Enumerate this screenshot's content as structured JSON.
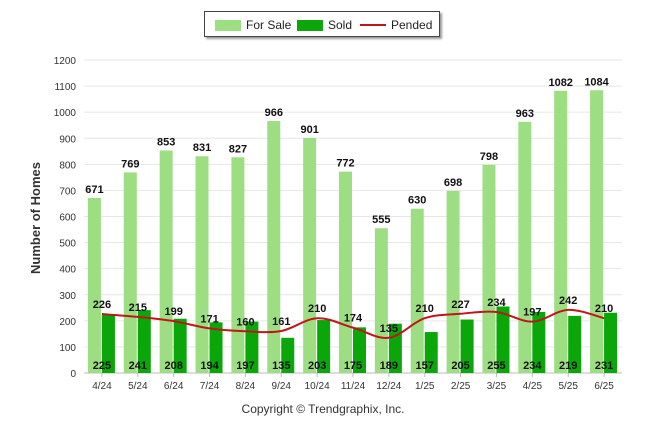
{
  "chart_data": {
    "type": "bar",
    "categories": [
      "4/24",
      "5/24",
      "6/24",
      "7/24",
      "8/24",
      "9/24",
      "10/24",
      "11/24",
      "12/24",
      "1/25",
      "2/25",
      "3/25",
      "4/25",
      "5/25",
      "6/25"
    ],
    "series": [
      {
        "name": "For Sale",
        "type": "bar",
        "color": "#9ede82",
        "values": [
          671,
          769,
          853,
          831,
          827,
          966,
          901,
          772,
          555,
          630,
          698,
          798,
          963,
          1082,
          1084
        ]
      },
      {
        "name": "Sold",
        "type": "bar",
        "color": "#0aa60a",
        "values": [
          225,
          241,
          208,
          194,
          197,
          135,
          203,
          175,
          189,
          157,
          205,
          255,
          234,
          219,
          231
        ]
      },
      {
        "name": "Pended",
        "type": "line",
        "color": "#c0161a",
        "values": [
          226,
          215,
          199,
          171,
          160,
          161,
          210,
          174,
          135,
          210,
          227,
          234,
          197,
          242,
          210
        ]
      }
    ],
    "ylabel": "Number of Homes",
    "xlabel": "",
    "ylim": [
      0,
      1200
    ],
    "yticks": [
      0,
      100,
      200,
      300,
      400,
      500,
      600,
      700,
      800,
      900,
      1000,
      1100,
      1200
    ],
    "grid": true,
    "legend_position": "top-center"
  },
  "footer": {
    "text": "Copyright © Trendgraphix, Inc."
  }
}
